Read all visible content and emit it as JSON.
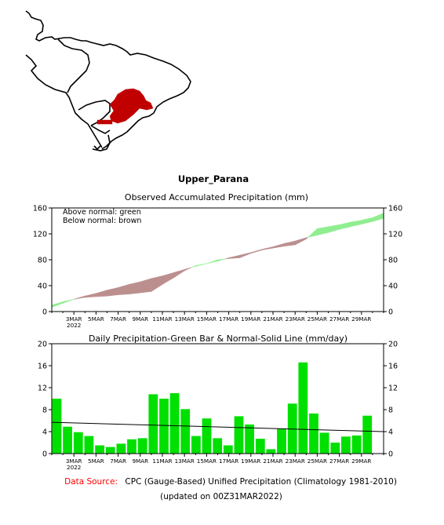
{
  "region_title": "Upper_Parana",
  "footer": {
    "source_label": "Data Source:",
    "source_text": "CPC (Gauge-Based) Unified Precipitation (Climatology 1981-2010)",
    "updated": "(updated on 00Z31MAR2022)"
  },
  "colors": {
    "above_normal": "#90ee90",
    "below_normal": "#bc8f8f",
    "daily_bar": "#00e000",
    "region": "#c00000",
    "source_label": "#ff0000"
  },
  "chart_data": [
    {
      "type": "area",
      "title": "Observed Accumulated Precipitation (mm)",
      "annotations": [
        "Above normal: green",
        "Below normal: brown"
      ],
      "x_start_day": 1,
      "x_end_day": 31,
      "x_tick_labels": [
        {
          "day": 3,
          "label": "3MAR"
        },
        {
          "day": 5,
          "label": "5MAR"
        },
        {
          "day": 7,
          "label": "7MAR"
        },
        {
          "day": 9,
          "label": "9MAR"
        },
        {
          "day": 11,
          "label": "11MAR"
        },
        {
          "day": 13,
          "label": "13MAR"
        },
        {
          "day": 15,
          "label": "15MAR"
        },
        {
          "day": 17,
          "label": "17MAR"
        },
        {
          "day": 19,
          "label": "19MAR"
        },
        {
          "day": 21,
          "label": "21MAR"
        },
        {
          "day": 23,
          "label": "23MAR"
        },
        {
          "day": 25,
          "label": "25MAR"
        },
        {
          "day": 27,
          "label": "27MAR"
        },
        {
          "day": 29,
          "label": "29MAR"
        }
      ],
      "x_year_label": "2022",
      "ylim": [
        0,
        160
      ],
      "yticks": [
        0,
        40,
        80,
        120,
        160
      ],
      "series": [
        {
          "name": "observed",
          "values": [
            10,
            15,
            19,
            22,
            23,
            24,
            26,
            27,
            29,
            31,
            42,
            52,
            63,
            71,
            74,
            80,
            82,
            83,
            90,
            95,
            98,
            101,
            103,
            112,
            128,
            131,
            134,
            138,
            141,
            145,
            152
          ]
        },
        {
          "name": "normal",
          "values": [
            6.5,
            13,
            19,
            24,
            28,
            33,
            37,
            42,
            46,
            51,
            55,
            60,
            65,
            70,
            74,
            78,
            83,
            87,
            91,
            96,
            100,
            105,
            109,
            114,
            118,
            122,
            127,
            131,
            135,
            139,
            144
          ]
        }
      ]
    },
    {
      "type": "bar",
      "title": "Daily Precipitation-Green Bar & Normal-Solid Line (mm/day)",
      "x_start_day": 1,
      "x_end_day": 31,
      "ylim": [
        0,
        20
      ],
      "yticks": [
        0,
        4,
        8,
        12,
        16,
        20
      ],
      "values": [
        10.0,
        4.9,
        3.9,
        3.2,
        1.5,
        1.2,
        1.8,
        2.6,
        2.8,
        10.8,
        10.0,
        11.0,
        8.1,
        3.2,
        6.4,
        2.8,
        1.5,
        6.8,
        5.3,
        2.7,
        0.8,
        4.5,
        9.1,
        16.6,
        7.3,
        3.8,
        2.0,
        3.1,
        3.3,
        6.9,
        0
      ],
      "normal_line": [
        5.7,
        4.0
      ]
    }
  ]
}
